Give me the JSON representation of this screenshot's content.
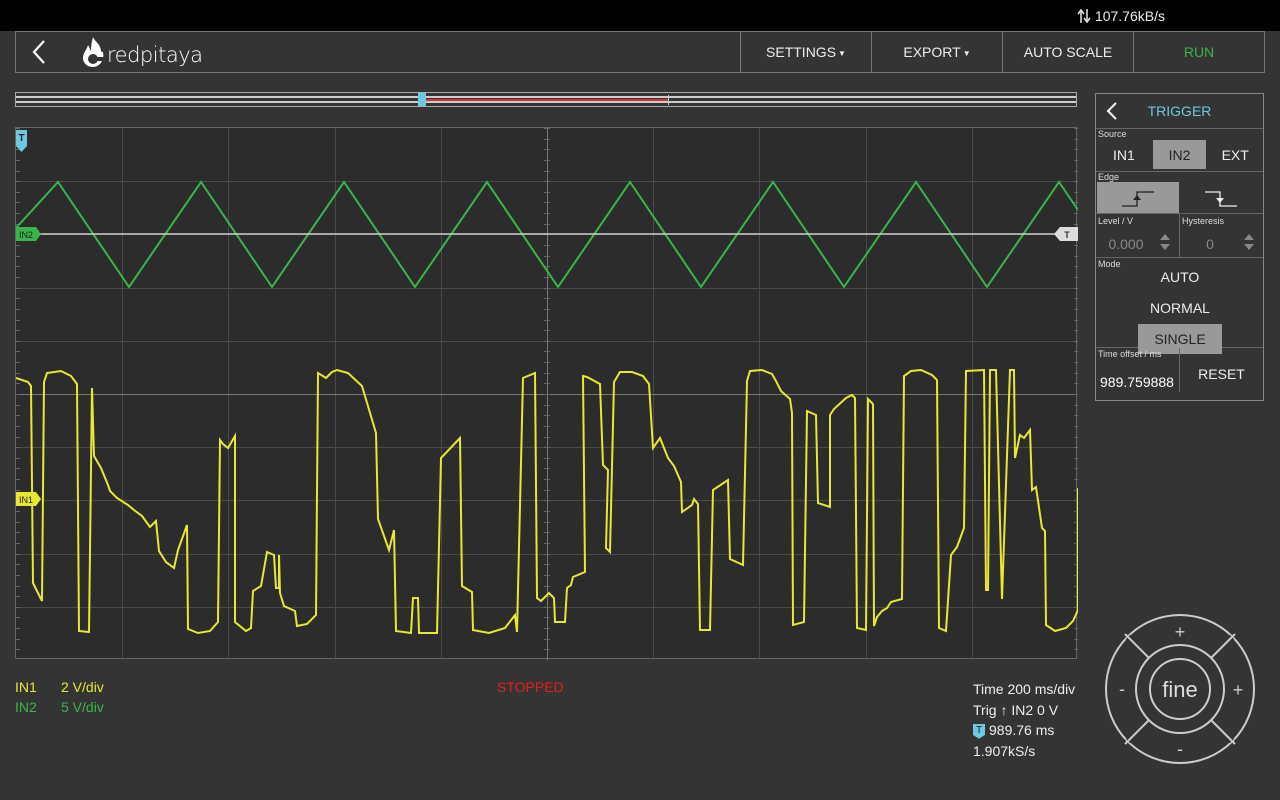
{
  "status": {
    "net_speed": "107.76kB/s"
  },
  "header": {
    "brand": "redpitaya",
    "settings": "SETTINGS",
    "export": "EXPORT",
    "autoscale": "AUTO SCALE",
    "run": "RUN"
  },
  "scope": {
    "trigger_marker": "T",
    "in2_marker": "IN2",
    "in1_marker": "IN1",
    "level_marker": "T"
  },
  "channels": {
    "in1": {
      "name": "IN1",
      "scale": "2 V/div",
      "color": "#e8e832"
    },
    "in2": {
      "name": "IN2",
      "scale": "5 V/div",
      "color": "#3ab54a"
    }
  },
  "state": "STOPPED",
  "timing": {
    "time": "Time 200 ms/div",
    "trig_prefix": "Trig",
    "trig_suffix": "IN2 0 V",
    "offset": "989.76 ms",
    "sample_rate": "1.907kS/s"
  },
  "trigger": {
    "title": "TRIGGER",
    "source_label": "Source",
    "sources": [
      "IN1",
      "IN2",
      "EXT"
    ],
    "active_source": "IN2",
    "edge_label": "Edge",
    "level_label": "Level / V",
    "level_value": "0.000",
    "hysteresis_label": "Hysteresis",
    "hysteresis_value": "0",
    "mode_label": "Mode",
    "modes": [
      "AUTO",
      "NORMAL",
      "SINGLE"
    ],
    "active_mode": "SINGLE",
    "time_offset_label": "Time offset / ms",
    "time_offset_value": "989.759888",
    "reset": "RESET"
  },
  "joystick": {
    "center": "fine",
    "plus": "+",
    "minus": "-"
  },
  "colors": {
    "accent": "#6cc9e0",
    "run": "#3ab54a",
    "stopped": "#e02020"
  }
}
